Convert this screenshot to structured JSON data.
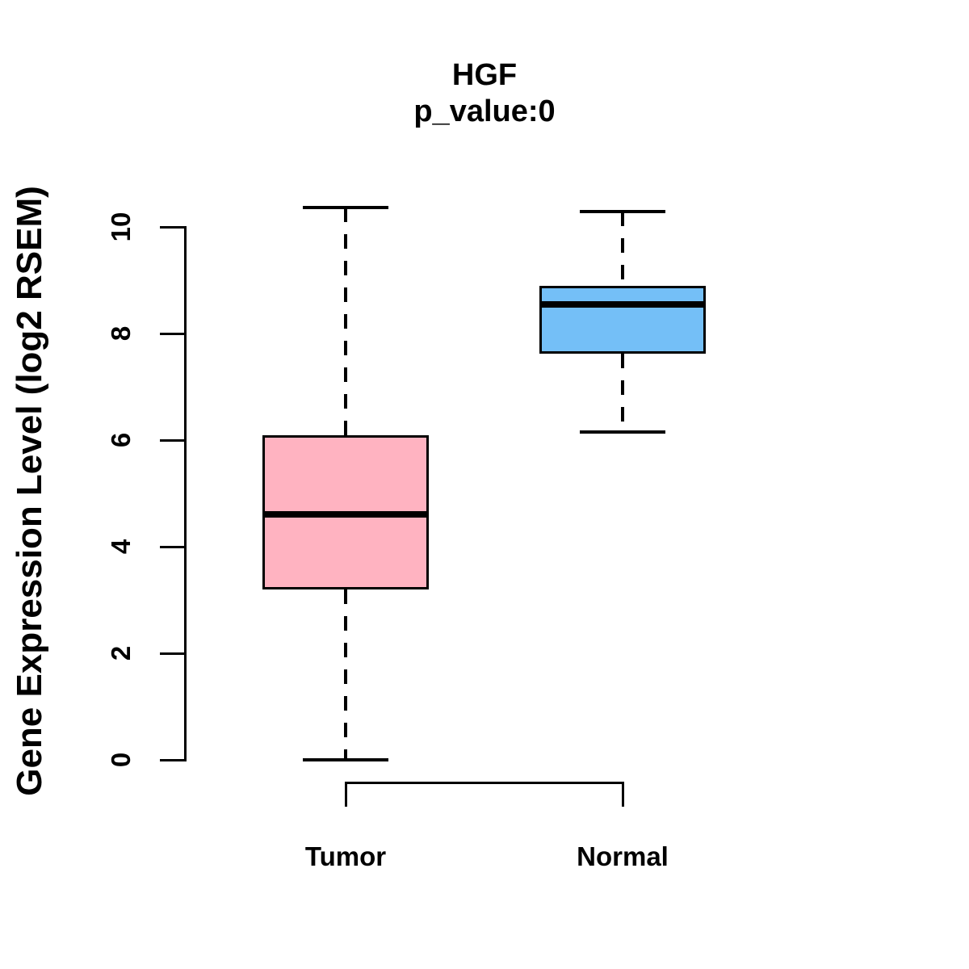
{
  "figure": {
    "title": "HGF",
    "subtitle": "p_value:0",
    "y_axis_label": "Gene Expression Level (log2 RSEM)"
  },
  "colors": {
    "tumor_fill": "#FFB3C1",
    "normal_fill": "#74BFF7",
    "line": "#000000",
    "background": "#FFFFFF"
  },
  "chart_data": {
    "type": "boxplot",
    "title": "HGF",
    "subtitle": "p_value:0",
    "xlabel": "",
    "ylabel": "Gene Expression Level (log2 RSEM)",
    "ylim": [
      0,
      10
    ],
    "yticks": [
      0,
      2,
      4,
      6,
      8,
      10
    ],
    "categories": [
      "Tumor",
      "Normal"
    ],
    "grid": false,
    "legend_position": "none",
    "series": [
      {
        "name": "Tumor",
        "whisker_low": 0,
        "q1": 3.2,
        "median": 4.61,
        "q3": 6.09,
        "whisker_high": 10.36,
        "outliers": [],
        "fill": "#FFB3C1",
        "whisker_style": "dashed"
      },
      {
        "name": "Normal",
        "whisker_low": 6.15,
        "q1": 7.62,
        "median": 8.55,
        "q3": 8.89,
        "whisker_high": 10.29,
        "outliers": [],
        "fill": "#74BFF7",
        "whisker_style": "dashed"
      }
    ]
  }
}
